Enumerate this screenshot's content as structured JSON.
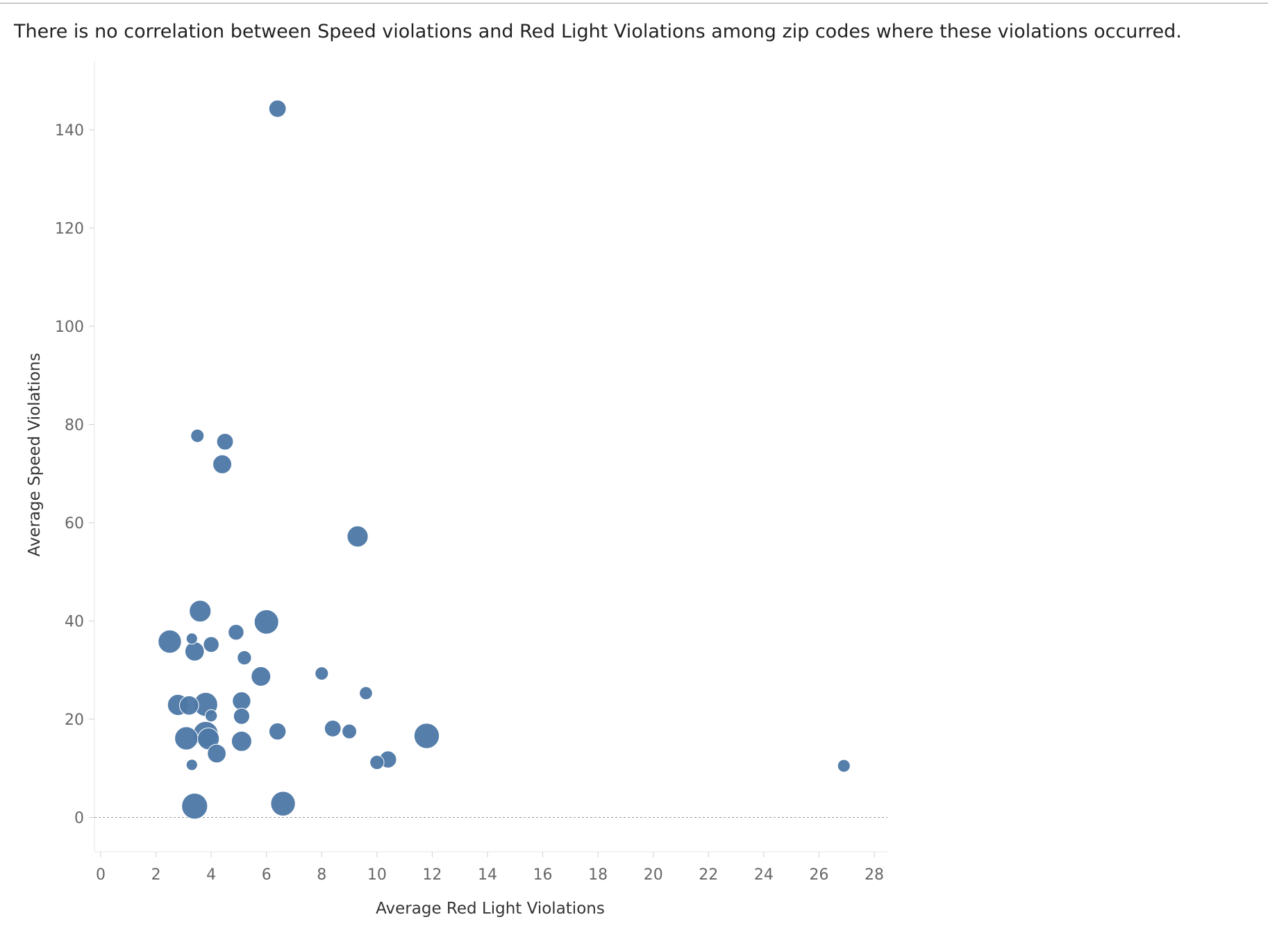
{
  "chart_data": {
    "type": "scatter",
    "title": "There is no correlation between Speed violations and Red Light Violations among zip codes where these violations occurred.",
    "xlabel": "Average Red Light Violations",
    "ylabel": "Average Speed Violations",
    "xlim": [
      0,
      28
    ],
    "ylim": [
      -7,
      153
    ],
    "x_ticks": [
      0,
      2,
      4,
      6,
      8,
      10,
      12,
      14,
      16,
      18,
      20,
      22,
      24,
      26,
      28
    ],
    "y_ticks": [
      0,
      20,
      40,
      60,
      80,
      100,
      120,
      140
    ],
    "zero_line": true,
    "grid": false,
    "marker_color": "#4e79a7",
    "size_encoding": "relative marker size (unlabeled)",
    "points": [
      {
        "x": 6.4,
        "y": 144.3,
        "size": 0.4
      },
      {
        "x": 3.5,
        "y": 77.7,
        "size": 0.22
      },
      {
        "x": 4.5,
        "y": 76.5,
        "size": 0.37
      },
      {
        "x": 4.4,
        "y": 71.9,
        "size": 0.47
      },
      {
        "x": 9.3,
        "y": 57.2,
        "size": 0.57
      },
      {
        "x": 3.6,
        "y": 42.0,
        "size": 0.6
      },
      {
        "x": 6.0,
        "y": 39.8,
        "size": 0.72
      },
      {
        "x": 4.9,
        "y": 37.7,
        "size": 0.33
      },
      {
        "x": 2.5,
        "y": 35.8,
        "size": 0.67
      },
      {
        "x": 3.3,
        "y": 36.4,
        "size": 0.13
      },
      {
        "x": 4.0,
        "y": 35.2,
        "size": 0.33
      },
      {
        "x": 3.4,
        "y": 33.8,
        "size": 0.49
      },
      {
        "x": 5.2,
        "y": 32.5,
        "size": 0.26
      },
      {
        "x": 5.8,
        "y": 28.7,
        "size": 0.5
      },
      {
        "x": 8.0,
        "y": 29.3,
        "size": 0.22
      },
      {
        "x": 9.6,
        "y": 25.3,
        "size": 0.21
      },
      {
        "x": 5.1,
        "y": 23.7,
        "size": 0.45
      },
      {
        "x": 2.8,
        "y": 22.9,
        "size": 0.57
      },
      {
        "x": 3.2,
        "y": 22.8,
        "size": 0.49
      },
      {
        "x": 3.8,
        "y": 23.0,
        "size": 0.7
      },
      {
        "x": 4.0,
        "y": 20.7,
        "size": 0.17
      },
      {
        "x": 5.1,
        "y": 20.6,
        "size": 0.35
      },
      {
        "x": 8.4,
        "y": 18.1,
        "size": 0.37
      },
      {
        "x": 9.0,
        "y": 17.5,
        "size": 0.28
      },
      {
        "x": 6.4,
        "y": 17.5,
        "size": 0.39
      },
      {
        "x": 3.1,
        "y": 16.1,
        "size": 0.67
      },
      {
        "x": 3.8,
        "y": 17.0,
        "size": 0.75
      },
      {
        "x": 3.9,
        "y": 16.0,
        "size": 0.6
      },
      {
        "x": 5.1,
        "y": 15.5,
        "size": 0.53
      },
      {
        "x": 11.8,
        "y": 16.6,
        "size": 0.76
      },
      {
        "x": 4.2,
        "y": 13.0,
        "size": 0.46
      },
      {
        "x": 3.3,
        "y": 10.7,
        "size": 0.13
      },
      {
        "x": 10.0,
        "y": 11.2,
        "size": 0.26
      },
      {
        "x": 10.4,
        "y": 11.8,
        "size": 0.39
      },
      {
        "x": 26.9,
        "y": 10.5,
        "size": 0.19
      },
      {
        "x": 3.4,
        "y": 2.3,
        "size": 0.79
      },
      {
        "x": 6.6,
        "y": 2.8,
        "size": 0.73
      }
    ]
  }
}
